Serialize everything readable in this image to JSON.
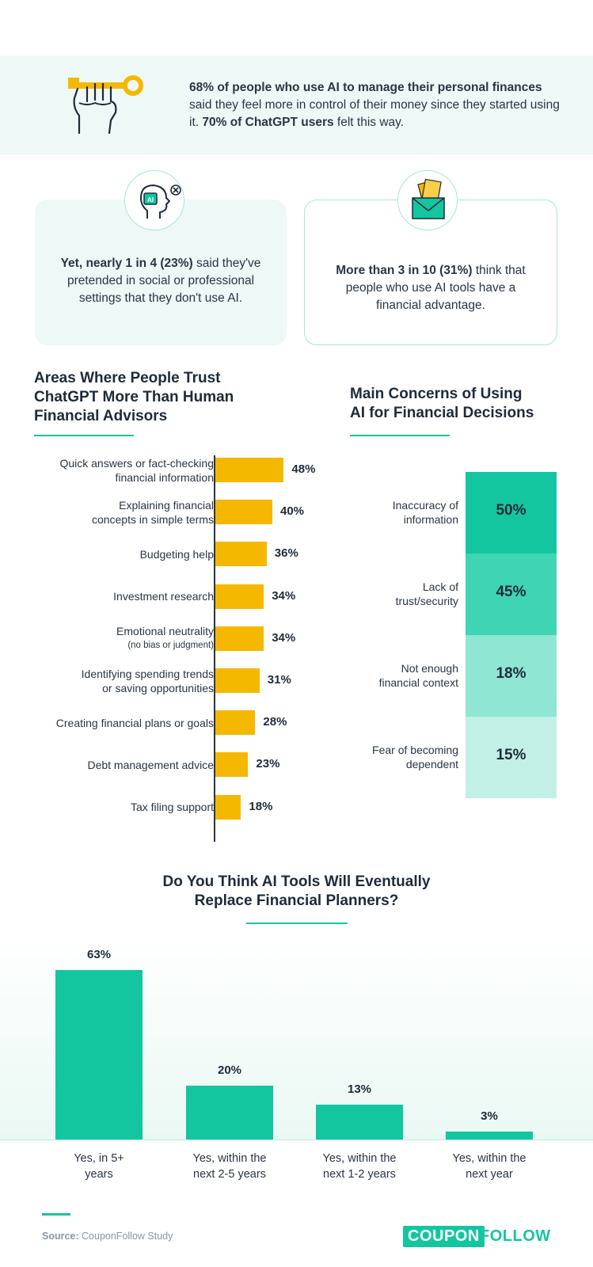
{
  "banner": {
    "icon": "hand-key-icon",
    "text_parts": [
      {
        "text": "68% of people who use AI to manage their personal finances",
        "bold": true
      },
      {
        "text": " said they feel more in control of their money since they started using it. ",
        "bold": false
      },
      {
        "text": "70% of ChatGPT users",
        "bold": true
      },
      {
        "text": " felt this way.",
        "bold": false
      }
    ]
  },
  "cards": {
    "left": {
      "icon": "ai-head-icon",
      "icon_text": "AI",
      "bold": "Yet, nearly 1 in 4 (23%)",
      "rest": " said they've pretended in social or professional settings that they don't use AI."
    },
    "right": {
      "icon": "money-envelope-icon",
      "bold": "More than 3 in 10 (31%)",
      "rest": " think that people who use AI tools have a financial advantage."
    }
  },
  "colors": {
    "accent": "#13c6a0",
    "bar_yellow": "#f5b800",
    "concern_shades": [
      "#13c6a0",
      "#3fd4b4",
      "#8fe6d3",
      "#c2f0e6"
    ],
    "text_dark": "#1f2a3a"
  },
  "chart_data": [
    {
      "type": "bar",
      "orientation": "horizontal",
      "title": "Areas Where People Trust ChatGPT More Than Human Financial Advisors",
      "categories": [
        {
          "label": "Quick answers or fact-checking financial information",
          "sub": ""
        },
        {
          "label": "Explaining financial concepts in simple terms",
          "sub": ""
        },
        {
          "label": "Budgeting help",
          "sub": ""
        },
        {
          "label": "Investment research",
          "sub": ""
        },
        {
          "label": "Emotional neutrality",
          "sub": "(no bias or judgment)"
        },
        {
          "label": "Identifying spending trends or saving opportunities",
          "sub": ""
        },
        {
          "label": "Creating financial plans or goals",
          "sub": ""
        },
        {
          "label": "Debt management advice",
          "sub": ""
        },
        {
          "label": "Tax filing support",
          "sub": ""
        }
      ],
      "values": [
        48,
        40,
        36,
        34,
        34,
        31,
        28,
        23,
        18
      ],
      "value_labels": [
        "48%",
        "40%",
        "36%",
        "34%",
        "34%",
        "31%",
        "28%",
        "23%",
        "18%"
      ],
      "unit": "%"
    },
    {
      "type": "table",
      "title": "Main Concerns of Using AI for Financial Decisions",
      "categories": [
        "Inaccuracy of information",
        "Lack of trust/security",
        "Not enough financial context",
        "Fear of becoming dependent"
      ],
      "values": [
        50,
        45,
        18,
        15
      ],
      "value_labels": [
        "50%",
        "45%",
        "18%",
        "15%"
      ],
      "unit": "%"
    },
    {
      "type": "bar",
      "orientation": "vertical",
      "title": "Do You Think AI Tools Will Eventually Replace Financial Planners?",
      "categories": [
        "Yes, in 5+ years",
        "Yes, within the next 2-5 years",
        "Yes, within the next 1-2 years",
        "Yes, within the next year"
      ],
      "values": [
        63,
        20,
        13,
        3
      ],
      "value_labels": [
        "63%",
        "20%",
        "13%",
        "3%"
      ],
      "unit": "%"
    }
  ],
  "trust_labels_display": [
    [
      "Quick answers or fact-checking",
      "financial information"
    ],
    [
      "Explaining financial",
      "concepts in simple terms"
    ],
    [
      "Budgeting help"
    ],
    [
      "Investment research"
    ],
    [
      "Emotional neutrality"
    ],
    [
      "Identifying spending trends",
      "or saving opportunities"
    ],
    [
      "Creating financial plans or goals"
    ],
    [
      "Debt management advice"
    ],
    [
      "Tax filing support"
    ]
  ],
  "concern_labels_display": [
    [
      "Inaccuracy of",
      "information"
    ],
    [
      "Lack of",
      "trust/security"
    ],
    [
      "Not enough",
      "financial context"
    ],
    [
      "Fear of becoming",
      "dependent"
    ]
  ],
  "trust_heading_lines": [
    "Areas Where People Trust",
    "ChatGPT More Than Human",
    "Financial Advisors"
  ],
  "concern_heading_lines": [
    "Main Concerns of Using",
    "AI for Financial Decisions"
  ],
  "replace_heading_lines": [
    "Do You Think AI Tools Will Eventually",
    "Replace Financial Planners?"
  ],
  "replace_labels_display": [
    [
      "Yes, in 5+",
      "years"
    ],
    [
      "Yes, within the",
      "next 2-5 years"
    ],
    [
      "Yes, within the",
      "next 1-2 years"
    ],
    [
      "Yes, within the",
      "next year"
    ]
  ],
  "footer": {
    "source_label": "Source:",
    "source_text": " CouponFollow Study",
    "logo_left": "COUPON",
    "logo_right": "FOLLOW"
  }
}
